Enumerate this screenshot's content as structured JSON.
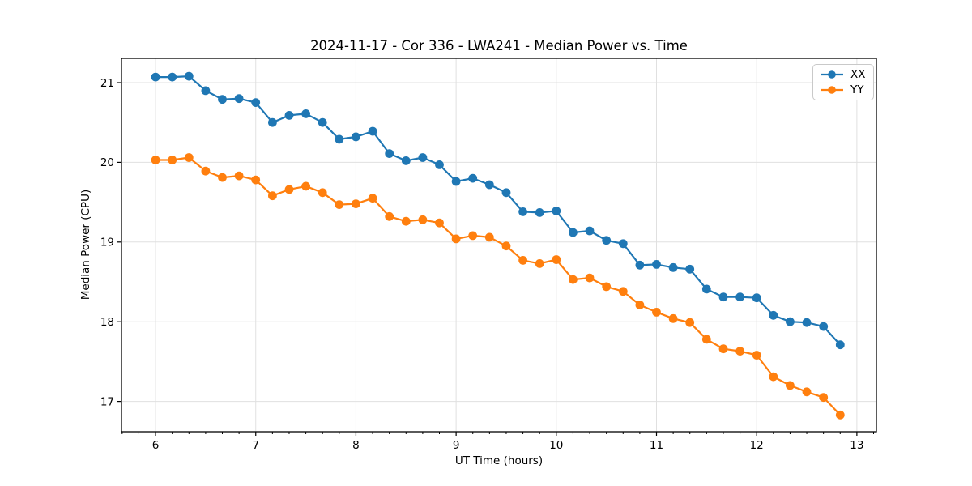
{
  "chart_data": {
    "type": "line",
    "title": "2024-11-17 - Cor 336 - LWA241 - Median Power vs. Time",
    "xlabel": "UT Time (hours)",
    "ylabel": "Median Power (CPU)",
    "x": [
      6.0,
      6.1667,
      6.3333,
      6.5,
      6.6667,
      6.8333,
      7.0,
      7.1667,
      7.3333,
      7.5,
      7.6667,
      7.8333,
      8.0,
      8.1667,
      8.3333,
      8.5,
      8.6667,
      8.8333,
      9.0,
      9.1667,
      9.3333,
      9.5,
      9.6667,
      9.8333,
      10.0,
      10.1667,
      10.3333,
      10.5,
      10.6667,
      10.8333,
      11.0,
      11.1667,
      11.3333,
      11.5,
      11.6667,
      11.8333,
      12.0,
      12.1667,
      12.3333,
      12.5,
      12.6667,
      12.8333
    ],
    "series": [
      {
        "name": "XX",
        "color": "#1f77b4",
        "values": [
          21.07,
          21.07,
          21.08,
          20.9,
          20.79,
          20.8,
          20.75,
          20.5,
          20.59,
          20.61,
          20.5,
          20.29,
          20.32,
          20.39,
          20.11,
          20.02,
          20.06,
          19.97,
          19.76,
          19.8,
          19.72,
          19.62,
          19.38,
          19.37,
          19.39,
          19.12,
          19.14,
          19.02,
          18.98,
          18.71,
          18.72,
          18.68,
          18.66,
          18.41,
          18.31,
          18.31,
          18.3,
          18.08,
          18.0,
          17.99,
          17.94,
          17.71
        ]
      },
      {
        "name": "YY",
        "color": "#ff7f0e",
        "values": [
          20.03,
          20.03,
          20.06,
          19.89,
          19.81,
          19.83,
          19.78,
          19.58,
          19.66,
          19.7,
          19.62,
          19.47,
          19.48,
          19.55,
          19.32,
          19.26,
          19.28,
          19.24,
          19.04,
          19.08,
          19.06,
          18.95,
          18.77,
          18.73,
          18.78,
          18.53,
          18.55,
          18.44,
          18.38,
          18.21,
          18.12,
          18.04,
          17.99,
          17.78,
          17.66,
          17.63,
          17.58,
          17.31,
          17.2,
          17.12,
          17.05,
          16.83
        ]
      }
    ],
    "xticks": [
      6,
      7,
      8,
      9,
      10,
      11,
      12,
      13
    ],
    "yticks": [
      17,
      18,
      19,
      20,
      21
    ],
    "x_minor_tick_step": 0.166667,
    "xlim": [
      5.66,
      13.195
    ],
    "ylim": [
      16.62,
      21.305
    ],
    "grid": true,
    "grid_color": "#e0e0e0",
    "background": "#ffffff",
    "legend": {
      "position": "upper right",
      "entries": [
        "XX",
        "YY"
      ]
    }
  }
}
